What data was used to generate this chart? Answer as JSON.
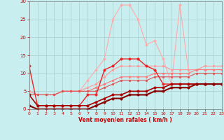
{
  "xlabel": "Vent moyen/en rafales ( km/h )",
  "xlim": [
    0,
    23
  ],
  "ylim": [
    0,
    30
  ],
  "xticks": [
    0,
    1,
    2,
    3,
    4,
    5,
    6,
    7,
    8,
    9,
    10,
    11,
    12,
    13,
    14,
    15,
    16,
    17,
    18,
    19,
    20,
    21,
    22,
    23
  ],
  "yticks": [
    0,
    5,
    10,
    15,
    20,
    25,
    30
  ],
  "background_color": "#c8eef0",
  "grid_color": "#aacccc",
  "series": [
    {
      "x": [
        0,
        1,
        2,
        3,
        4,
        5,
        6,
        7,
        8,
        9,
        10,
        11,
        12,
        13,
        14,
        15,
        16,
        17,
        18,
        19,
        20,
        21,
        22,
        23
      ],
      "y": [
        5,
        4,
        4,
        4,
        5,
        5,
        5,
        8,
        11,
        14,
        25,
        29,
        29,
        25,
        18,
        19,
        14,
        7,
        29,
        11,
        11,
        11,
        11,
        11
      ],
      "color": "#ffaaaa",
      "linewidth": 0.8,
      "markersize": 2.0,
      "marker": "D"
    },
    {
      "x": [
        0,
        1,
        2,
        3,
        4,
        5,
        6,
        7,
        8,
        9,
        10,
        11,
        12,
        13,
        14,
        15,
        16,
        17,
        18,
        19,
        20,
        21,
        22,
        23
      ],
      "y": [
        5,
        4,
        4,
        4,
        5,
        5,
        5,
        6,
        7,
        9,
        11,
        12,
        12,
        12,
        12,
        12,
        12,
        11,
        11,
        11,
        11,
        12,
        12,
        12
      ],
      "color": "#ff9999",
      "linewidth": 0.8,
      "markersize": 2.0,
      "marker": "o"
    },
    {
      "x": [
        0,
        1,
        2,
        3,
        4,
        5,
        6,
        7,
        8,
        9,
        10,
        11,
        12,
        13,
        14,
        15,
        16,
        17,
        18,
        19,
        20,
        21,
        22,
        23
      ],
      "y": [
        4,
        4,
        4,
        4,
        5,
        5,
        5,
        5,
        6,
        7,
        8,
        9,
        9,
        9,
        9,
        10,
        10,
        10,
        10,
        10,
        11,
        11,
        11,
        11
      ],
      "color": "#ff7777",
      "linewidth": 0.8,
      "markersize": 2.0,
      "marker": "o"
    },
    {
      "x": [
        0,
        1,
        2,
        3,
        4,
        5,
        6,
        7,
        8,
        9,
        10,
        11,
        12,
        13,
        14,
        15,
        16,
        17,
        18,
        19,
        20,
        21,
        22,
        23
      ],
      "y": [
        4,
        4,
        4,
        4,
        5,
        5,
        5,
        5,
        5,
        6,
        7,
        8,
        8,
        8,
        8,
        9,
        9,
        9,
        9,
        9,
        10,
        10,
        10,
        10
      ],
      "color": "#dd5555",
      "linewidth": 0.8,
      "markersize": 2.0,
      "marker": "o"
    },
    {
      "x": [
        0,
        1,
        2,
        3,
        4,
        5,
        6,
        7,
        8,
        9,
        10,
        11,
        12,
        13,
        14,
        15,
        16,
        17,
        18,
        19,
        20,
        21,
        22,
        23
      ],
      "y": [
        12,
        1,
        1,
        1,
        1,
        1,
        1,
        4,
        4,
        11,
        12,
        14,
        14,
        14,
        12,
        11,
        7,
        7,
        7,
        7,
        7,
        7,
        7,
        7
      ],
      "color": "#ee2222",
      "linewidth": 1.0,
      "markersize": 2.5,
      "marker": "o"
    },
    {
      "x": [
        0,
        1,
        2,
        3,
        4,
        5,
        6,
        7,
        8,
        9,
        10,
        11,
        12,
        13,
        14,
        15,
        16,
        17,
        18,
        19,
        20,
        21,
        22,
        23
      ],
      "y": [
        4,
        1,
        1,
        1,
        1,
        1,
        1,
        1,
        2,
        3,
        4,
        4,
        5,
        5,
        5,
        6,
        6,
        7,
        7,
        7,
        7,
        7,
        7,
        7
      ],
      "color": "#aa0000",
      "linewidth": 1.2,
      "markersize": 2.5,
      "marker": "o"
    },
    {
      "x": [
        0,
        1,
        2,
        3,
        4,
        5,
        6,
        7,
        8,
        9,
        10,
        11,
        12,
        13,
        14,
        15,
        16,
        17,
        18,
        19,
        20,
        21,
        22,
        23
      ],
      "y": [
        1,
        0,
        0,
        0,
        0,
        0,
        0,
        0,
        1,
        2,
        3,
        3,
        4,
        4,
        4,
        5,
        5,
        6,
        6,
        6,
        7,
        7,
        7,
        7
      ],
      "color": "#880000",
      "linewidth": 1.5,
      "markersize": 2.5,
      "marker": "o"
    }
  ]
}
